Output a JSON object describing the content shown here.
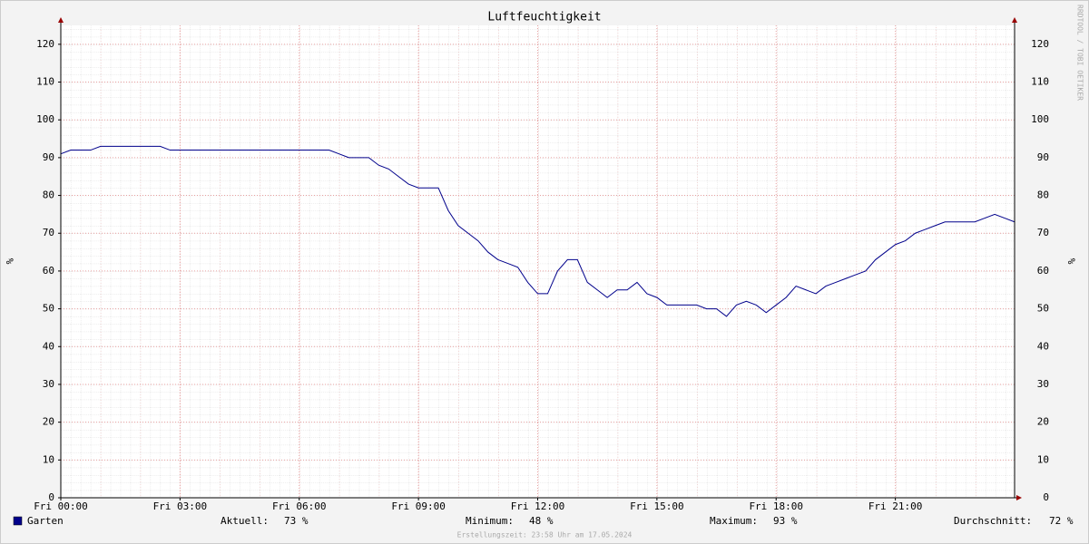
{
  "chart_data": {
    "type": "line",
    "title": "Luftfeuchtigkeit",
    "y_label": "%",
    "watermark": "RRDTOOL / TOBI OETIKER",
    "footer": "Erstellungszeit: 23:58 Uhr am 17.05.2024",
    "x": [
      0,
      0.25,
      0.5,
      0.75,
      1,
      1.25,
      1.5,
      1.75,
      2,
      2.25,
      2.5,
      2.75,
      3,
      3.25,
      3.5,
      3.75,
      4,
      4.25,
      4.5,
      4.75,
      5,
      5.25,
      5.5,
      5.75,
      6,
      6.25,
      6.5,
      6.75,
      7,
      7.25,
      7.5,
      7.75,
      8,
      8.25,
      8.5,
      8.75,
      9,
      9.25,
      9.5,
      9.75,
      10,
      10.25,
      10.5,
      10.75,
      11,
      11.25,
      11.5,
      11.75,
      12,
      12.25,
      12.5,
      12.75,
      13,
      13.25,
      13.5,
      13.75,
      14,
      14.25,
      14.5,
      14.75,
      15,
      15.25,
      15.5,
      15.75,
      16,
      16.25,
      16.5,
      16.75,
      17,
      17.25,
      17.5,
      17.75,
      18,
      18.25,
      18.5,
      18.75,
      19,
      19.25,
      19.5,
      19.75,
      20,
      20.25,
      20.5,
      20.75,
      21,
      21.25,
      21.5,
      21.75,
      22,
      22.25,
      22.5,
      22.75,
      23,
      23.25,
      23.5,
      23.75,
      24
    ],
    "series": [
      {
        "name": "Garten",
        "color": "#00008b",
        "values": [
          91,
          92,
          92,
          92,
          93,
          93,
          93,
          93,
          93,
          93,
          93,
          92,
          92,
          92,
          92,
          92,
          92,
          92,
          92,
          92,
          92,
          92,
          92,
          92,
          92,
          92,
          92,
          92,
          91,
          90,
          90,
          90,
          88,
          87,
          85,
          83,
          82,
          82,
          82,
          76,
          72,
          70,
          68,
          65,
          63,
          62,
          61,
          57,
          54,
          54,
          60,
          63,
          63,
          57,
          55,
          53,
          55,
          55,
          57,
          54,
          53,
          51,
          51,
          51,
          51,
          50,
          50,
          48,
          51,
          52,
          51,
          49,
          51,
          53,
          56,
          55,
          54,
          56,
          57,
          58,
          59,
          60,
          63,
          65,
          67,
          68,
          70,
          71,
          72,
          73,
          73,
          73,
          73,
          74,
          75,
          74,
          73
        ]
      }
    ],
    "xlim": [
      0,
      24
    ],
    "xticks": [
      {
        "value": 0,
        "label": "Fri 00:00"
      },
      {
        "value": 3,
        "label": "Fri 03:00"
      },
      {
        "value": 6,
        "label": "Fri 06:00"
      },
      {
        "value": 9,
        "label": "Fri 09:00"
      },
      {
        "value": 12,
        "label": "Fri 12:00"
      },
      {
        "value": 15,
        "label": "Fri 15:00"
      },
      {
        "value": 18,
        "label": "Fri 18:00"
      },
      {
        "value": 21,
        "label": "Fri 21:00"
      }
    ],
    "ylim": [
      0,
      125
    ],
    "yticks": [
      0,
      10,
      20,
      30,
      40,
      50,
      60,
      70,
      80,
      90,
      100,
      110,
      120
    ],
    "grid": true,
    "right_axis": true,
    "stats": [
      {
        "label": "Aktuell:",
        "text": "73 %"
      },
      {
        "label": "Minimum:",
        "text": "48 %"
      },
      {
        "label": "Maximum:",
        "text": "93 %"
      },
      {
        "label": "Durchschnitt:",
        "text": "72 %"
      }
    ]
  }
}
